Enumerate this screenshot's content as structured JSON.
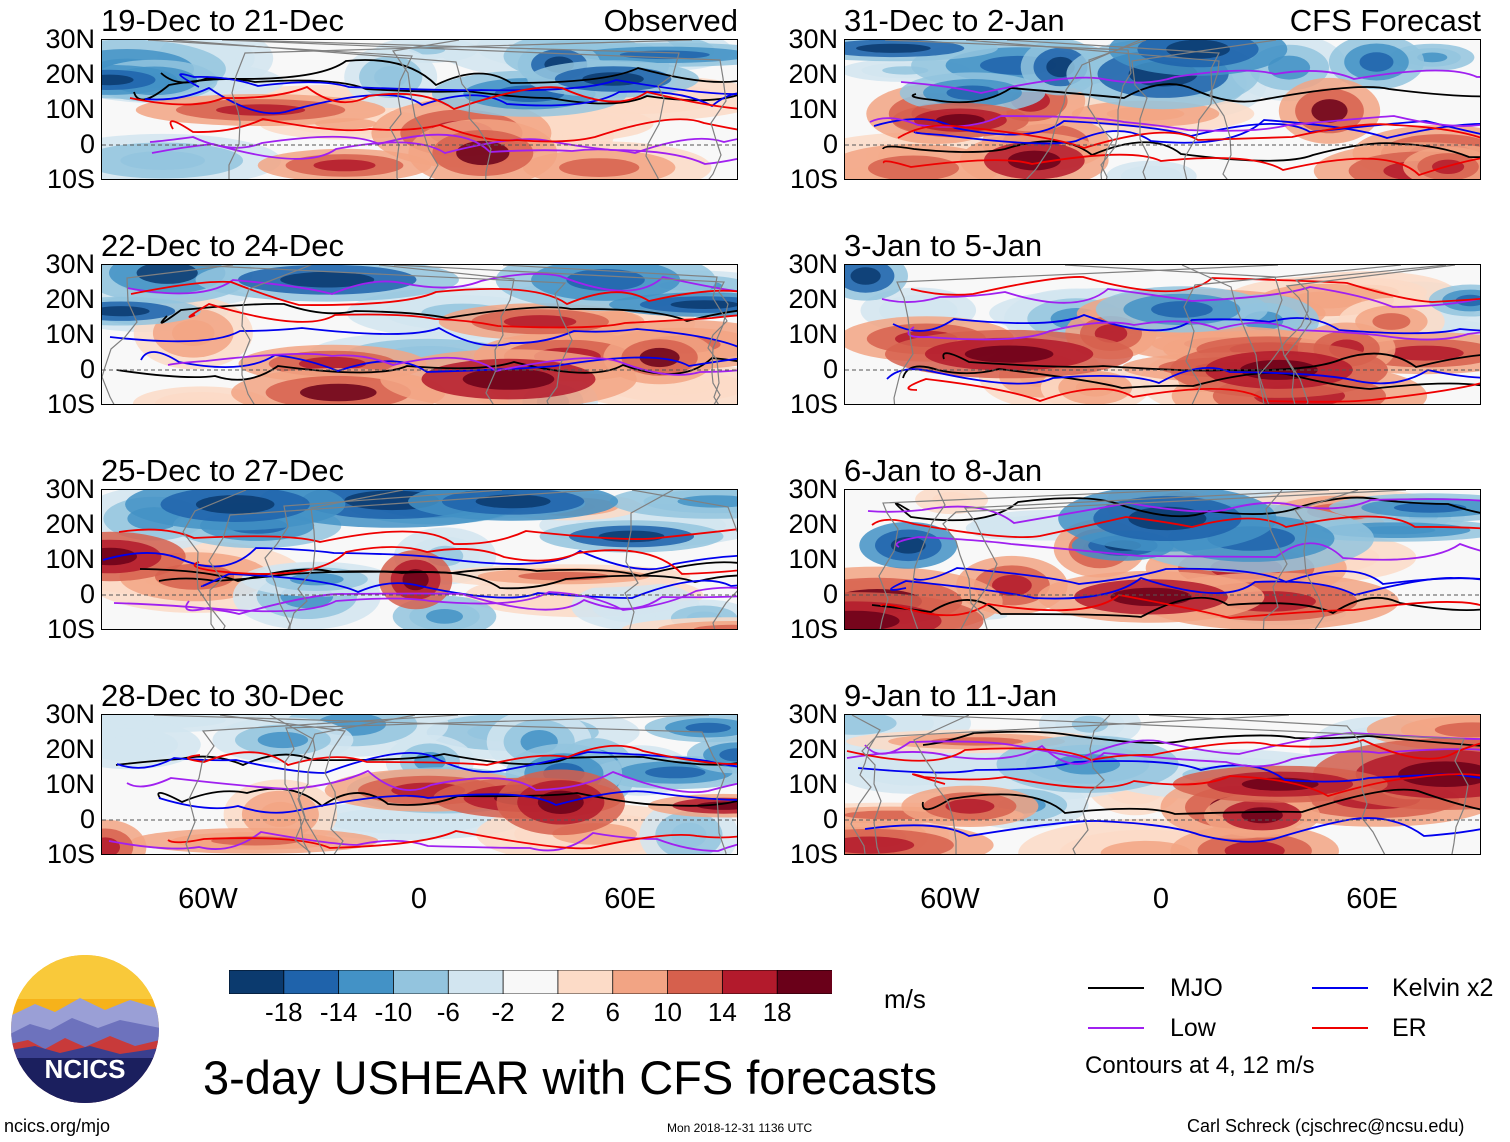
{
  "panels": [
    {
      "title": "19-Dec to 21-Dec",
      "tag": "Observed",
      "seed": 11
    },
    {
      "title": "31-Dec to 2-Jan",
      "tag": "CFS Forecast",
      "seed": 23
    },
    {
      "title": "22-Dec to 24-Dec",
      "tag": "",
      "seed": 37
    },
    {
      "title": "3-Jan to 5-Jan",
      "tag": "",
      "seed": 41
    },
    {
      "title": "25-Dec to 27-Dec",
      "tag": "",
      "seed": 53
    },
    {
      "title": "6-Jan to 8-Jan",
      "tag": "",
      "seed": 67
    },
    {
      "title": "28-Dec to 30-Dec",
      "tag": "",
      "seed": 71
    },
    {
      "title": "9-Jan to 11-Jan",
      "tag": "",
      "seed": 89
    }
  ],
  "lat_labels": [
    "30N",
    "20N",
    "10N",
    "0",
    "10S"
  ],
  "lon_labels": [
    "60W",
    "0",
    "60E"
  ],
  "colorbar": {
    "unit": "m/s",
    "ticks": [
      "-18",
      "-14",
      "-10",
      "-6",
      "-2",
      "2",
      "6",
      "10",
      "14",
      "18"
    ],
    "colors": [
      "#0b3a6e",
      "#1f63ab",
      "#4392c6",
      "#93c4de",
      "#d2e5f0",
      "#f8f8f8",
      "#fcdbc7",
      "#f2a484",
      "#d6604d",
      "#b31a2c",
      "#6a0019"
    ]
  },
  "legend": {
    "items": [
      {
        "label": "MJO",
        "color": "#000000"
      },
      {
        "label": "Kelvin x2",
        "color": "#0000ee"
      },
      {
        "label": "Low",
        "color": "#a020f0"
      },
      {
        "label": "ER",
        "color": "#ee0000"
      }
    ],
    "note": "Contours at 4, 12 m/s"
  },
  "logo_text": "NCICS",
  "main_title": "3-day USHEAR with CFS forecasts",
  "footer": {
    "left": "ncics.org/mjo",
    "center": "Mon 2018-12-31 1136 UTC",
    "right": "Carl Schreck (cjschrec@ncsu.edu)"
  }
}
